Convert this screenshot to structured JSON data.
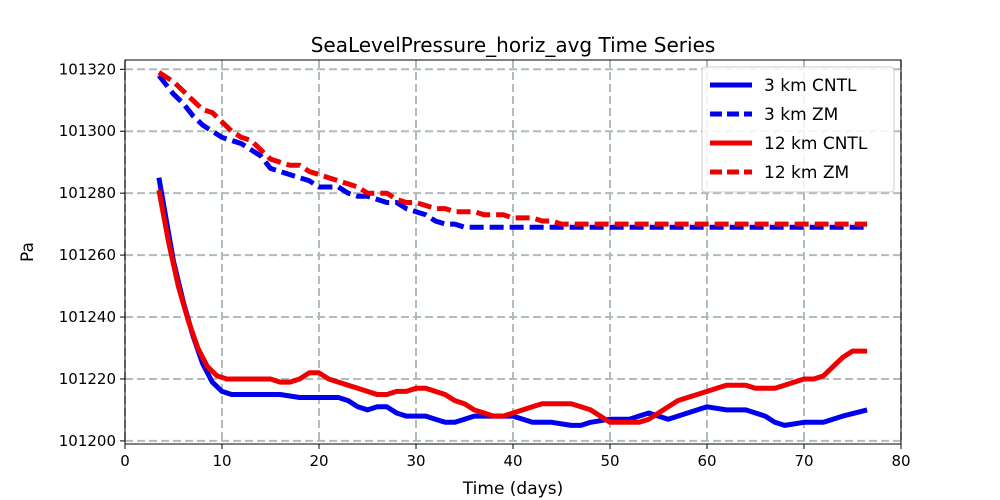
{
  "chart_data": {
    "type": "line",
    "title": "SeaLevelPressure_horiz_avg Time Series",
    "xlabel": "Time (days)",
    "ylabel": "Pa",
    "xlim": [
      0,
      80
    ],
    "ylim": [
      101199,
      101323
    ],
    "xticks": [
      0,
      10,
      20,
      30,
      40,
      50,
      60,
      70,
      80
    ],
    "yticks": [
      101200,
      101220,
      101240,
      101260,
      101280,
      101300,
      101320
    ],
    "grid": true,
    "legend_position": "top-right",
    "series": [
      {
        "name": "3 km CNTL",
        "color": "#0000ee",
        "style": "solid",
        "x": [
          3.5,
          5,
          6,
          7,
          8,
          9,
          10,
          11,
          12,
          14,
          16,
          18,
          20,
          22,
          23,
          24,
          25,
          26,
          27,
          28,
          29,
          30,
          31,
          32,
          33,
          34,
          35,
          36,
          37,
          38,
          39,
          40,
          42,
          44,
          46,
          47,
          48,
          50,
          52,
          54,
          56,
          58,
          60,
          62,
          64,
          66,
          67,
          68,
          70,
          72,
          74,
          76.5
        ],
        "y": [
          101285,
          101258,
          101245,
          101234,
          101225,
          101219,
          101216,
          101215,
          101215,
          101215,
          101215,
          101214,
          101214,
          101214,
          101213,
          101211,
          101210,
          101211,
          101211,
          101209,
          101208,
          101208,
          101208,
          101207,
          101206,
          101206,
          101207,
          101208,
          101208,
          101208,
          101208,
          101208,
          101206,
          101206,
          101205,
          101205,
          101206,
          101207,
          101207,
          101209,
          101207,
          101209,
          101211,
          101210,
          101210,
          101208,
          101206,
          101205,
          101206,
          101206,
          101208,
          101210
        ]
      },
      {
        "name": "3 km ZM",
        "color": "#0000ee",
        "style": "dashed",
        "x": [
          3.5,
          5,
          6,
          7,
          8,
          9,
          10,
          11,
          12,
          13,
          14,
          15,
          16,
          17,
          18,
          19,
          20,
          21,
          22,
          23,
          24,
          25,
          26,
          27,
          28,
          29,
          30,
          31,
          32,
          33,
          34,
          35,
          36,
          38,
          40,
          45,
          50,
          55,
          60,
          65,
          70,
          76.5
        ],
        "y": [
          101318,
          101312,
          101309,
          101305,
          101302,
          101300,
          101298,
          101297,
          101296,
          101294,
          101292,
          101288,
          101287,
          101286,
          101285,
          101284,
          101282,
          101282,
          101282,
          101280,
          101279,
          101279,
          101278,
          101277,
          101277,
          101275,
          101274,
          101273,
          101271,
          101270,
          101270,
          101269,
          101269,
          101269,
          101269,
          101269,
          101269,
          101269,
          101269,
          101269,
          101269,
          101269
        ]
      },
      {
        "name": "12 km CNTL",
        "color": "#ee0000",
        "style": "solid",
        "x": [
          3.5,
          4.5,
          5.5,
          6.5,
          7.5,
          8.5,
          9.5,
          10.5,
          12,
          14,
          15,
          16,
          17,
          18,
          19,
          20,
          21,
          22,
          23,
          24,
          25,
          26,
          27,
          28,
          29,
          30,
          31,
          32,
          33,
          34,
          35,
          36,
          37,
          38,
          39,
          40,
          41,
          42,
          43,
          44,
          45,
          46,
          47,
          48,
          49,
          50,
          51,
          52,
          53,
          54,
          55,
          56,
          57,
          58,
          59,
          60,
          61,
          62,
          63,
          64,
          65,
          66,
          67,
          68,
          69,
          70,
          71,
          72,
          73,
          74,
          75,
          76.5
        ],
        "y": [
          101281,
          101264,
          101250,
          101239,
          101230,
          101224,
          101221,
          101220,
          101220,
          101220,
          101220,
          101219,
          101219,
          101220,
          101222,
          101222,
          101220,
          101219,
          101218,
          101217,
          101216,
          101215,
          101215,
          101216,
          101216,
          101217,
          101217,
          101216,
          101215,
          101213,
          101212,
          101210,
          101209,
          101208,
          101208,
          101209,
          101210,
          101211,
          101212,
          101212,
          101212,
          101212,
          101211,
          101210,
          101208,
          101206,
          101206,
          101206,
          101206,
          101207,
          101209,
          101211,
          101213,
          101214,
          101215,
          101216,
          101217,
          101218,
          101218,
          101218,
          101217,
          101217,
          101217,
          101218,
          101219,
          101220,
          101220,
          101221,
          101224,
          101227,
          101229,
          101229
        ]
      },
      {
        "name": "12 km ZM",
        "color": "#ee0000",
        "style": "dashed",
        "x": [
          3.5,
          5,
          6,
          7,
          8,
          9,
          10,
          11,
          12,
          13,
          14,
          15,
          16,
          17,
          18,
          19,
          20,
          21,
          22,
          23,
          24,
          25,
          26,
          27,
          28,
          29,
          30,
          31,
          32,
          33,
          34,
          35,
          36,
          37,
          38,
          39,
          40,
          41,
          42,
          43,
          44,
          45,
          46,
          47,
          48,
          50,
          55,
          60,
          65,
          70,
          76.5
        ],
        "y": [
          101319,
          101316,
          101313,
          101310,
          101307,
          101306,
          101303,
          101300,
          101298,
          101297,
          101294,
          101291,
          101290,
          101289,
          101289,
          101287,
          101286,
          101285,
          101284,
          101283,
          101282,
          101280,
          101280,
          101280,
          101278,
          101277,
          101277,
          101276,
          101275,
          101275,
          101274,
          101274,
          101274,
          101273,
          101273,
          101273,
          101272,
          101272,
          101272,
          101271,
          101271,
          101270,
          101270,
          101270,
          101270,
          101270,
          101270,
          101270,
          101270,
          101270,
          101270
        ]
      }
    ]
  }
}
